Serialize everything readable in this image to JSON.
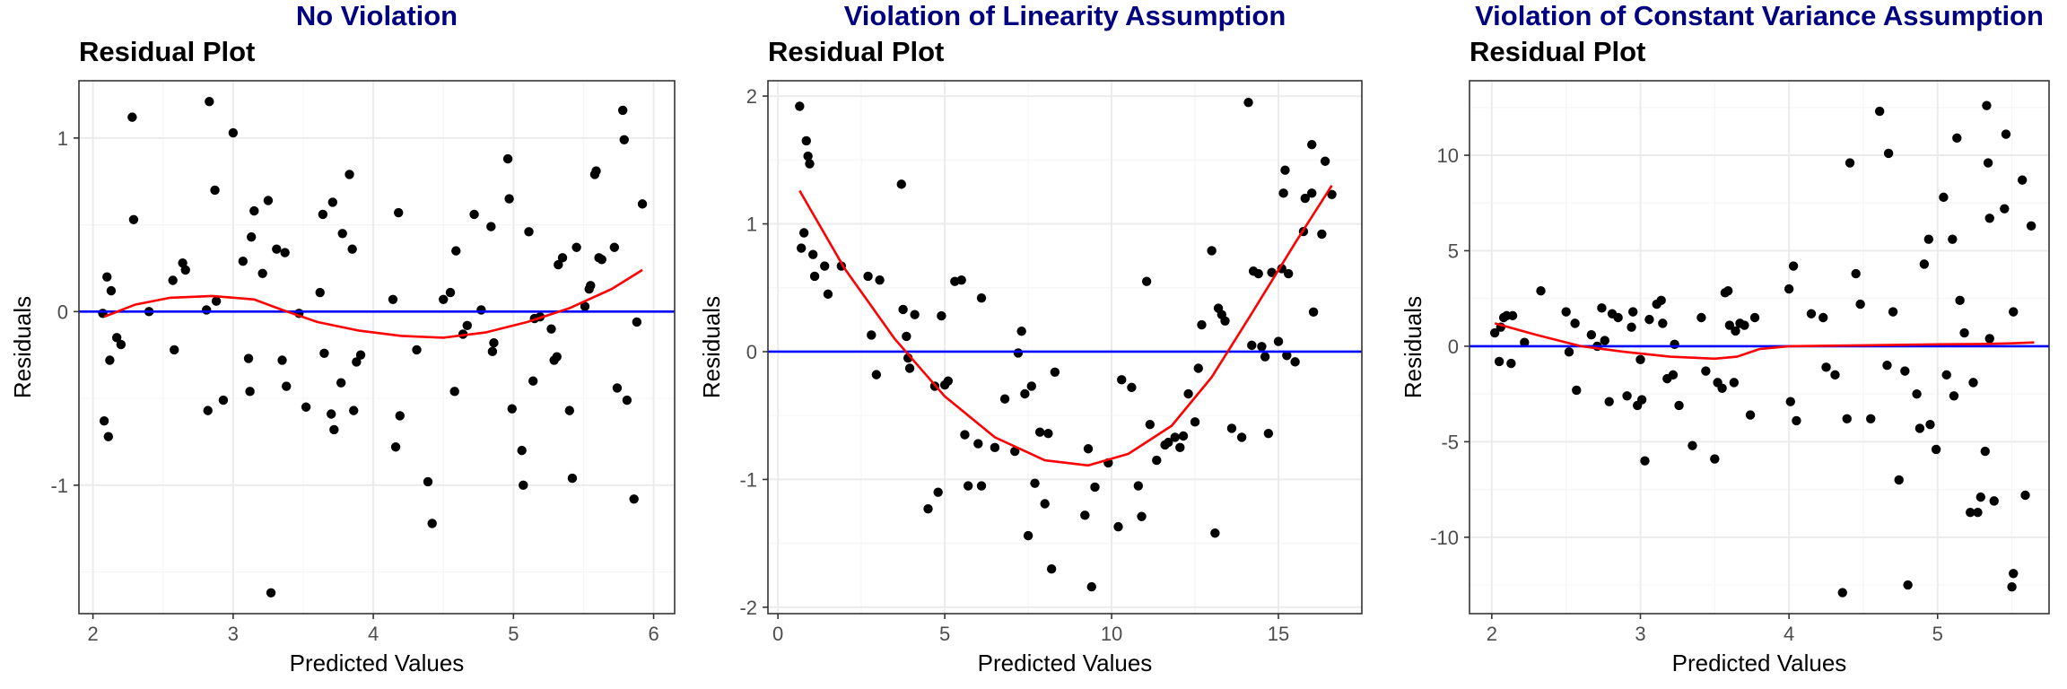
{
  "colors": {
    "panel_title": "#000080",
    "points": "#000000",
    "zero_line": "#0000ff",
    "smooth_line": "#ff0000",
    "panel_border": "#333333",
    "grid_major": "#ebebeb",
    "grid_minor": "#f5f5f5",
    "tick_label": "#4d4d4d"
  },
  "chart_data": [
    {
      "type": "scatter",
      "panel_title": "No Violation",
      "title": "Residual Plot",
      "xlabel": "Predicted Values",
      "ylabel": "Residuals",
      "xlim": [
        1.9,
        6.15
      ],
      "ylim": [
        -1.74,
        1.33
      ],
      "xticks": [
        2,
        3,
        4,
        5,
        6
      ],
      "yticks": [
        -1,
        0,
        1
      ],
      "grid": true,
      "hline": 0,
      "points": [
        [
          2.07,
          -0.01
        ],
        [
          2.08,
          -0.63
        ],
        [
          2.1,
          0.2
        ],
        [
          2.11,
          -0.72
        ],
        [
          2.12,
          -0.28
        ],
        [
          2.13,
          0.12
        ],
        [
          2.17,
          -0.15
        ],
        [
          2.2,
          -0.19
        ],
        [
          2.28,
          1.12
        ],
        [
          2.29,
          0.53
        ],
        [
          2.4,
          0.0
        ],
        [
          2.57,
          0.18
        ],
        [
          2.58,
          -0.22
        ],
        [
          2.64,
          0.28
        ],
        [
          2.66,
          0.24
        ],
        [
          2.81,
          0.01
        ],
        [
          2.82,
          -0.57
        ],
        [
          2.83,
          1.21
        ],
        [
          2.87,
          0.7
        ],
        [
          2.88,
          0.06
        ],
        [
          2.93,
          -0.51
        ],
        [
          3.0,
          1.03
        ],
        [
          3.07,
          0.29
        ],
        [
          3.11,
          -0.27
        ],
        [
          3.12,
          -0.46
        ],
        [
          3.13,
          0.43
        ],
        [
          3.15,
          0.58
        ],
        [
          3.21,
          0.22
        ],
        [
          3.25,
          0.64
        ],
        [
          3.27,
          -1.62
        ],
        [
          3.31,
          0.36
        ],
        [
          3.35,
          -0.28
        ],
        [
          3.37,
          0.34
        ],
        [
          3.38,
          -0.43
        ],
        [
          3.47,
          -0.01
        ],
        [
          3.52,
          -0.55
        ],
        [
          3.62,
          0.11
        ],
        [
          3.64,
          0.56
        ],
        [
          3.65,
          -0.24
        ],
        [
          3.7,
          -0.59
        ],
        [
          3.71,
          0.63
        ],
        [
          3.72,
          -0.68
        ],
        [
          3.77,
          -0.41
        ],
        [
          3.78,
          0.45
        ],
        [
          3.83,
          0.79
        ],
        [
          3.85,
          0.36
        ],
        [
          3.86,
          -0.57
        ],
        [
          3.88,
          -0.29
        ],
        [
          3.91,
          -0.25
        ],
        [
          4.14,
          0.07
        ],
        [
          4.16,
          -0.78
        ],
        [
          4.18,
          0.57
        ],
        [
          4.19,
          -0.6
        ],
        [
          4.31,
          -0.22
        ],
        [
          4.39,
          -0.98
        ],
        [
          4.42,
          -1.22
        ],
        [
          4.5,
          0.07
        ],
        [
          4.55,
          0.11
        ],
        [
          4.58,
          -0.46
        ],
        [
          4.59,
          0.35
        ],
        [
          4.64,
          -0.13
        ],
        [
          4.67,
          -0.08
        ],
        [
          4.72,
          0.56
        ],
        [
          4.77,
          0.01
        ],
        [
          4.84,
          0.49
        ],
        [
          4.85,
          -0.23
        ],
        [
          4.86,
          -0.18
        ],
        [
          4.96,
          0.88
        ],
        [
          4.97,
          0.65
        ],
        [
          4.99,
          -0.56
        ],
        [
          5.06,
          -0.8
        ],
        [
          5.07,
          -1.0
        ],
        [
          5.11,
          0.46
        ],
        [
          5.14,
          -0.4
        ],
        [
          5.15,
          -0.04
        ],
        [
          5.19,
          -0.03
        ],
        [
          5.27,
          -0.1
        ],
        [
          5.29,
          -0.28
        ],
        [
          5.31,
          -0.26
        ],
        [
          5.32,
          0.27
        ],
        [
          5.35,
          0.31
        ],
        [
          5.4,
          -0.57
        ],
        [
          5.42,
          -0.96
        ],
        [
          5.45,
          0.37
        ],
        [
          5.51,
          0.03
        ],
        [
          5.54,
          0.13
        ],
        [
          5.55,
          0.15
        ],
        [
          5.58,
          0.79
        ],
        [
          5.59,
          0.81
        ],
        [
          5.61,
          0.31
        ],
        [
          5.63,
          0.3
        ],
        [
          5.72,
          0.37
        ],
        [
          5.74,
          -0.44
        ],
        [
          5.78,
          1.16
        ],
        [
          5.79,
          0.99
        ],
        [
          5.81,
          -0.51
        ],
        [
          5.86,
          -1.08
        ],
        [
          5.88,
          -0.06
        ],
        [
          5.92,
          0.62
        ]
      ],
      "smooth": [
        [
          2.08,
          -0.03
        ],
        [
          2.3,
          0.04
        ],
        [
          2.55,
          0.08
        ],
        [
          2.85,
          0.09
        ],
        [
          3.15,
          0.07
        ],
        [
          3.35,
          0.01
        ],
        [
          3.6,
          -0.06
        ],
        [
          3.9,
          -0.11
        ],
        [
          4.2,
          -0.14
        ],
        [
          4.5,
          -0.15
        ],
        [
          4.8,
          -0.12
        ],
        [
          5.1,
          -0.06
        ],
        [
          5.4,
          0.02
        ],
        [
          5.7,
          0.13
        ],
        [
          5.92,
          0.24
        ]
      ]
    },
    {
      "type": "scatter",
      "panel_title": "Violation of Linearity Assumption",
      "title": "Residual Plot",
      "xlabel": "Predicted Values",
      "ylabel": "Residuals",
      "xlim": [
        -0.3,
        17.5
      ],
      "ylim": [
        -2.05,
        2.12
      ],
      "xticks": [
        0,
        5,
        10,
        15
      ],
      "yticks": [
        -2,
        -1,
        0,
        1,
        2
      ],
      "grid": true,
      "hline": 0,
      "points": [
        [
          0.65,
          1.92
        ],
        [
          0.7,
          0.81
        ],
        [
          0.78,
          0.93
        ],
        [
          0.85,
          1.65
        ],
        [
          0.9,
          1.53
        ],
        [
          0.95,
          1.47
        ],
        [
          1.05,
          0.76
        ],
        [
          1.1,
          0.59
        ],
        [
          1.4,
          0.67
        ],
        [
          1.5,
          0.45
        ],
        [
          1.9,
          0.67
        ],
        [
          2.7,
          0.59
        ],
        [
          2.8,
          0.13
        ],
        [
          2.95,
          -0.18
        ],
        [
          3.05,
          0.56
        ],
        [
          3.7,
          1.31
        ],
        [
          3.75,
          0.33
        ],
        [
          3.85,
          0.12
        ],
        [
          3.9,
          -0.05
        ],
        [
          3.95,
          -0.13
        ],
        [
          4.1,
          0.29
        ],
        [
          4.5,
          -1.23
        ],
        [
          4.7,
          -0.27
        ],
        [
          4.8,
          -1.1
        ],
        [
          4.9,
          0.28
        ],
        [
          5.0,
          -0.26
        ],
        [
          5.1,
          -0.23
        ],
        [
          5.3,
          0.55
        ],
        [
          5.5,
          0.56
        ],
        [
          5.6,
          -0.65
        ],
        [
          5.7,
          -1.05
        ],
        [
          6.0,
          -0.72
        ],
        [
          6.1,
          -1.05
        ],
        [
          6.1,
          0.42
        ],
        [
          6.5,
          -0.75
        ],
        [
          6.8,
          -0.37
        ],
        [
          7.1,
          -0.78
        ],
        [
          7.2,
          -0.01
        ],
        [
          7.3,
          0.16
        ],
        [
          7.4,
          -0.33
        ],
        [
          7.5,
          -1.44
        ],
        [
          7.6,
          -0.27
        ],
        [
          7.7,
          -1.03
        ],
        [
          7.85,
          -0.63
        ],
        [
          8.0,
          -1.19
        ],
        [
          8.1,
          -0.64
        ],
        [
          8.2,
          -1.7
        ],
        [
          8.3,
          -0.16
        ],
        [
          9.2,
          -1.28
        ],
        [
          9.3,
          -0.76
        ],
        [
          9.4,
          -1.84
        ],
        [
          9.5,
          -1.06
        ],
        [
          9.9,
          -0.87
        ],
        [
          10.2,
          -1.37
        ],
        [
          10.3,
          -0.22
        ],
        [
          10.6,
          -0.28
        ],
        [
          10.8,
          -1.05
        ],
        [
          10.9,
          -1.29
        ],
        [
          11.05,
          0.55
        ],
        [
          11.15,
          -0.57
        ],
        [
          11.35,
          -0.85
        ],
        [
          11.6,
          -0.73
        ],
        [
          11.7,
          -0.71
        ],
        [
          11.9,
          -0.67
        ],
        [
          12.05,
          -0.75
        ],
        [
          12.15,
          -0.66
        ],
        [
          12.3,
          -0.33
        ],
        [
          12.5,
          -0.55
        ],
        [
          12.6,
          -0.13
        ],
        [
          12.7,
          0.21
        ],
        [
          13.0,
          0.79
        ],
        [
          13.1,
          -1.42
        ],
        [
          13.2,
          0.34
        ],
        [
          13.3,
          0.29
        ],
        [
          13.4,
          0.24
        ],
        [
          13.6,
          -0.6
        ],
        [
          13.9,
          -0.67
        ],
        [
          14.1,
          1.95
        ],
        [
          14.2,
          0.05
        ],
        [
          14.25,
          0.63
        ],
        [
          14.4,
          0.61
        ],
        [
          14.5,
          0.04
        ],
        [
          14.6,
          -0.04
        ],
        [
          14.7,
          -0.64
        ],
        [
          14.8,
          0.62
        ],
        [
          15.0,
          0.08
        ],
        [
          15.1,
          0.65
        ],
        [
          15.15,
          1.24
        ],
        [
          15.2,
          1.42
        ],
        [
          15.25,
          -0.03
        ],
        [
          15.3,
          0.61
        ],
        [
          15.5,
          -0.08
        ],
        [
          15.75,
          0.94
        ],
        [
          15.8,
          1.2
        ],
        [
          16.0,
          1.62
        ],
        [
          16.0,
          1.24
        ],
        [
          16.05,
          0.31
        ],
        [
          16.3,
          0.92
        ],
        [
          16.4,
          1.49
        ],
        [
          16.6,
          1.23
        ]
      ],
      "smooth": [
        [
          0.65,
          1.26
        ],
        [
          2.0,
          0.65
        ],
        [
          3.5,
          0.1
        ],
        [
          5.0,
          -0.35
        ],
        [
          6.5,
          -0.67
        ],
        [
          8.0,
          -0.85
        ],
        [
          9.3,
          -0.89
        ],
        [
          10.5,
          -0.8
        ],
        [
          11.8,
          -0.58
        ],
        [
          13.0,
          -0.2
        ],
        [
          14.2,
          0.3
        ],
        [
          15.5,
          0.85
        ],
        [
          16.6,
          1.3
        ]
      ]
    },
    {
      "type": "scatter",
      "panel_title": "Violation of Constant Variance Assumption",
      "title": "Residual Plot",
      "xlabel": "Predicted Values",
      "ylabel": "Residuals",
      "xlim": [
        1.85,
        5.75
      ],
      "ylim": [
        -14.0,
        13.9
      ],
      "xticks": [
        2,
        3,
        4,
        5
      ],
      "yticks": [
        -10,
        -5,
        0,
        5,
        10
      ],
      "grid": true,
      "hline": 0,
      "points": [
        [
          2.02,
          0.7
        ],
        [
          2.05,
          -0.8
        ],
        [
          2.06,
          1.0
        ],
        [
          2.08,
          1.5
        ],
        [
          2.1,
          1.6
        ],
        [
          2.13,
          -0.9
        ],
        [
          2.14,
          1.6
        ],
        [
          2.22,
          0.2
        ],
        [
          2.33,
          2.9
        ],
        [
          2.5,
          1.8
        ],
        [
          2.52,
          -0.3
        ],
        [
          2.56,
          1.2
        ],
        [
          2.57,
          -2.3
        ],
        [
          2.67,
          0.6
        ],
        [
          2.71,
          0.0
        ],
        [
          2.74,
          2.0
        ],
        [
          2.76,
          0.3
        ],
        [
          2.79,
          -2.9
        ],
        [
          2.81,
          1.7
        ],
        [
          2.85,
          1.5
        ],
        [
          2.91,
          -2.6
        ],
        [
          2.94,
          1.0
        ],
        [
          2.95,
          1.8
        ],
        [
          2.98,
          -3.1
        ],
        [
          3.0,
          -0.7
        ],
        [
          3.01,
          -2.8
        ],
        [
          3.03,
          -6.0
        ],
        [
          3.06,
          1.4
        ],
        [
          3.11,
          2.2
        ],
        [
          3.14,
          2.4
        ],
        [
          3.15,
          1.2
        ],
        [
          3.18,
          -1.7
        ],
        [
          3.22,
          -1.5
        ],
        [
          3.23,
          0.1
        ],
        [
          3.26,
          -3.1
        ],
        [
          3.35,
          -5.2
        ],
        [
          3.41,
          1.5
        ],
        [
          3.44,
          -1.3
        ],
        [
          3.5,
          -5.9
        ],
        [
          3.52,
          -1.9
        ],
        [
          3.55,
          -2.2
        ],
        [
          3.57,
          2.8
        ],
        [
          3.59,
          2.9
        ],
        [
          3.6,
          1.1
        ],
        [
          3.63,
          -1.9
        ],
        [
          3.64,
          0.8
        ],
        [
          3.67,
          1.2
        ],
        [
          3.7,
          1.1
        ],
        [
          3.74,
          -3.6
        ],
        [
          3.77,
          1.5
        ],
        [
          4.0,
          3.0
        ],
        [
          4.01,
          -2.9
        ],
        [
          4.03,
          4.2
        ],
        [
          4.05,
          -3.9
        ],
        [
          4.15,
          1.7
        ],
        [
          4.23,
          1.5
        ],
        [
          4.25,
          -1.1
        ],
        [
          4.31,
          -1.5
        ],
        [
          4.36,
          -12.9
        ],
        [
          4.39,
          -3.8
        ],
        [
          4.41,
          9.6
        ],
        [
          4.45,
          3.8
        ],
        [
          4.48,
          2.2
        ],
        [
          4.55,
          -3.8
        ],
        [
          4.61,
          12.3
        ],
        [
          4.66,
          -1.0
        ],
        [
          4.67,
          10.1
        ],
        [
          4.7,
          1.8
        ],
        [
          4.74,
          -7.0
        ],
        [
          4.78,
          -1.3
        ],
        [
          4.8,
          -12.5
        ],
        [
          4.86,
          -2.5
        ],
        [
          4.88,
          -4.3
        ],
        [
          4.91,
          4.3
        ],
        [
          4.94,
          5.6
        ],
        [
          4.95,
          -4.1
        ],
        [
          4.99,
          -5.4
        ],
        [
          5.04,
          7.8
        ],
        [
          5.06,
          -1.5
        ],
        [
          5.1,
          5.6
        ],
        [
          5.11,
          -2.6
        ],
        [
          5.13,
          10.9
        ],
        [
          5.15,
          2.4
        ],
        [
          5.18,
          0.7
        ],
        [
          5.22,
          -8.7
        ],
        [
          5.24,
          -1.9
        ],
        [
          5.27,
          -8.7
        ],
        [
          5.29,
          -7.9
        ],
        [
          5.32,
          -5.5
        ],
        [
          5.33,
          12.6
        ],
        [
          5.34,
          9.6
        ],
        [
          5.35,
          6.7
        ],
        [
          5.35,
          0.4
        ],
        [
          5.38,
          -8.1
        ],
        [
          5.45,
          7.2
        ],
        [
          5.46,
          11.1
        ],
        [
          5.5,
          -12.6
        ],
        [
          5.51,
          -11.9
        ],
        [
          5.51,
          1.8
        ],
        [
          5.57,
          8.7
        ],
        [
          5.59,
          -7.8
        ],
        [
          5.63,
          6.3
        ]
      ],
      "smooth": [
        [
          2.02,
          1.2
        ],
        [
          2.3,
          0.6
        ],
        [
          2.6,
          0.0
        ],
        [
          2.9,
          -0.3
        ],
        [
          3.2,
          -0.55
        ],
        [
          3.5,
          -0.65
        ],
        [
          3.65,
          -0.55
        ],
        [
          3.8,
          -0.15
        ],
        [
          4.0,
          0.0
        ],
        [
          4.5,
          0.05
        ],
        [
          5.0,
          0.1
        ],
        [
          5.3,
          0.12
        ],
        [
          5.5,
          0.15
        ],
        [
          5.65,
          0.2
        ]
      ]
    }
  ]
}
